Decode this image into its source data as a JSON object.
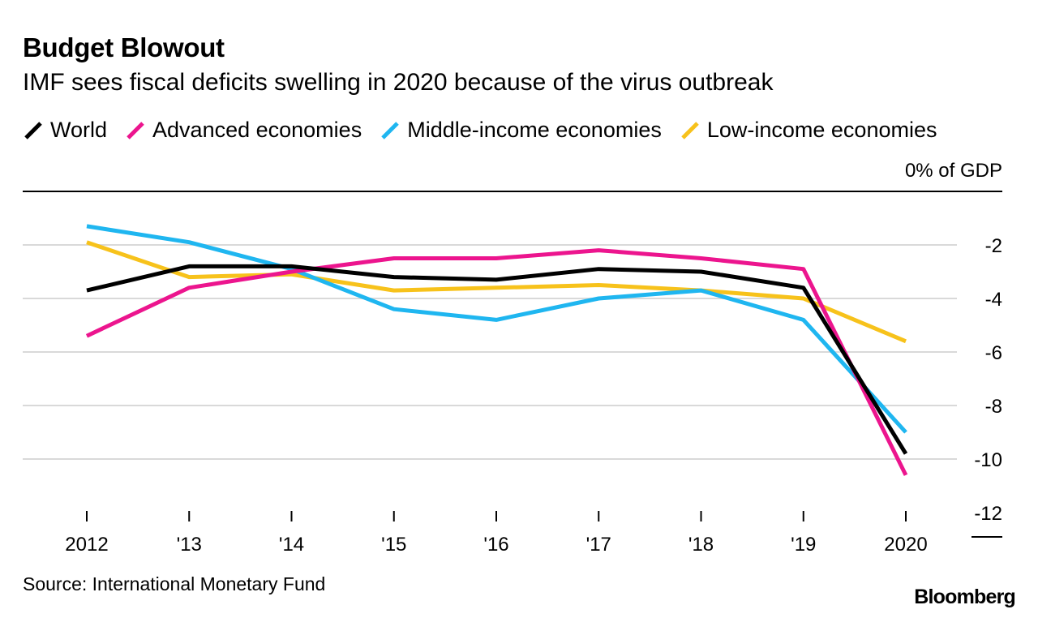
{
  "chart_data": {
    "type": "line",
    "title": "Budget Blowout",
    "subtitle": "IMF sees fiscal deficits swelling in 2020 because of the virus outbreak",
    "categories": [
      "2012",
      "'13",
      "'14",
      "'15",
      "'16",
      "'17",
      "'18",
      "'19",
      "2020"
    ],
    "series": [
      {
        "name": "World",
        "color": "#000000",
        "values": [
          -3.7,
          -2.8,
          -2.8,
          -3.2,
          -3.3,
          -2.9,
          -3.0,
          -3.6,
          -9.8
        ]
      },
      {
        "name": "Advanced economies",
        "color": "#ec158e",
        "values": [
          -5.4,
          -3.6,
          -3.0,
          -2.5,
          -2.5,
          -2.2,
          -2.5,
          -2.9,
          -10.6
        ]
      },
      {
        "name": "Middle-income economies",
        "color": "#1fb6f0",
        "values": [
          -1.3,
          -1.9,
          -2.9,
          -4.4,
          -4.8,
          -4.0,
          -3.7,
          -4.8,
          -9.0
        ]
      },
      {
        "name": "Low-income economies",
        "color": "#f7c21b",
        "values": [
          -1.9,
          -3.2,
          -3.1,
          -3.7,
          -3.6,
          -3.5,
          -3.7,
          -4.0,
          -5.6
        ]
      }
    ],
    "y_unit_label": "0% of GDP",
    "y_ticks": [
      "-2",
      "-4",
      "-6",
      "-8",
      "-10",
      "-12"
    ],
    "ylim": [
      -12.7,
      0
    ],
    "grid": true,
    "legend_position": "top-left"
  },
  "footer": {
    "source": "Source: International Monetary Fund",
    "logo": "Bloomberg"
  }
}
